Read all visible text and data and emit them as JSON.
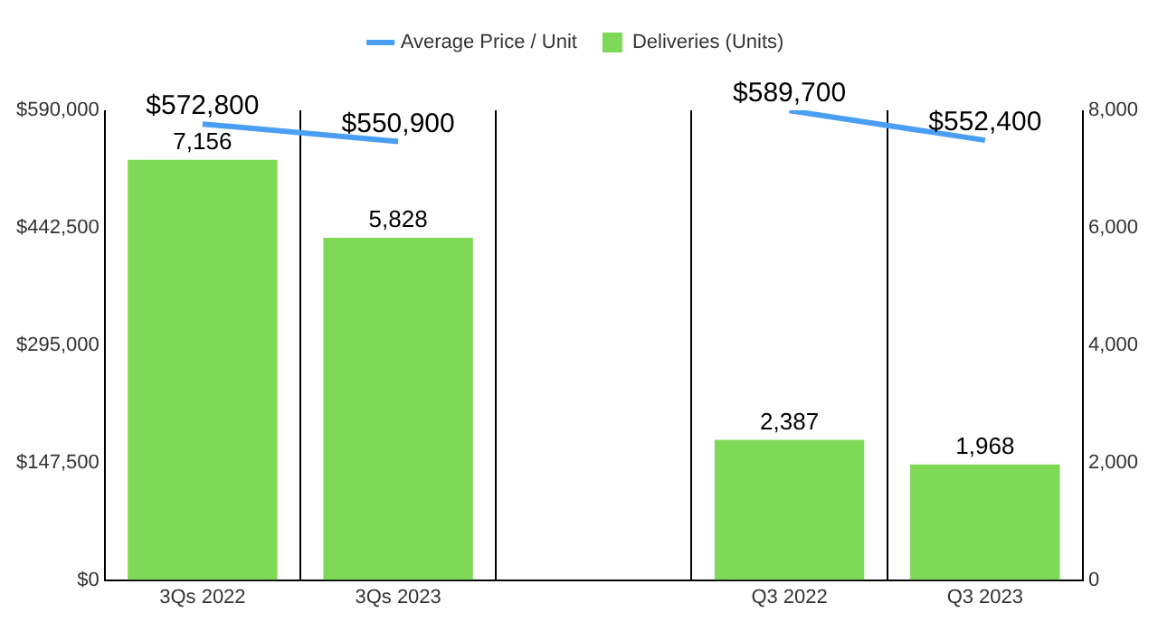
{
  "chart_data": {
    "type": "bar",
    "categories": [
      "3Qs 2022",
      "3Qs 2023",
      null,
      "Q3 2022",
      "Q3 2023"
    ],
    "series": [
      {
        "name": "Average Price / Unit",
        "type": "line",
        "axis": "y",
        "color": "#4a9ff5",
        "values": [
          572800,
          550900,
          null,
          589700,
          552400
        ],
        "value_labels": [
          "$572,800",
          "$550,900",
          null,
          "$589,700",
          "$552,400"
        ]
      },
      {
        "name": "Deliveries (Units)",
        "axis": "y2",
        "color": "#7ed957",
        "values": [
          7156,
          5828,
          null,
          2387,
          1968
        ],
        "value_labels": [
          "7,156",
          "5,828",
          null,
          "2,387",
          "1,968"
        ]
      }
    ],
    "ylim": [
      0,
      590000
    ],
    "yticks": [
      {
        "value": 0,
        "label": "$0"
      },
      {
        "value": 147500,
        "label": "$147,500"
      },
      {
        "value": 295000,
        "label": "$295,000"
      },
      {
        "value": 442500,
        "label": "$442,500"
      },
      {
        "value": 590000,
        "label": "$590,000"
      }
    ],
    "y2lim": [
      0,
      8000
    ],
    "y2ticks": [
      0,
      {
        "value": 2000,
        "label": "2,000"
      },
      {
        "value": 4000,
        "label": "4,000"
      },
      {
        "value": 6000,
        "label": "6,000"
      },
      {
        "value": 8000,
        "label": "8,000"
      }
    ],
    "grid": "x",
    "legend": "top",
    "marker": "none",
    "line_style": "solid"
  }
}
